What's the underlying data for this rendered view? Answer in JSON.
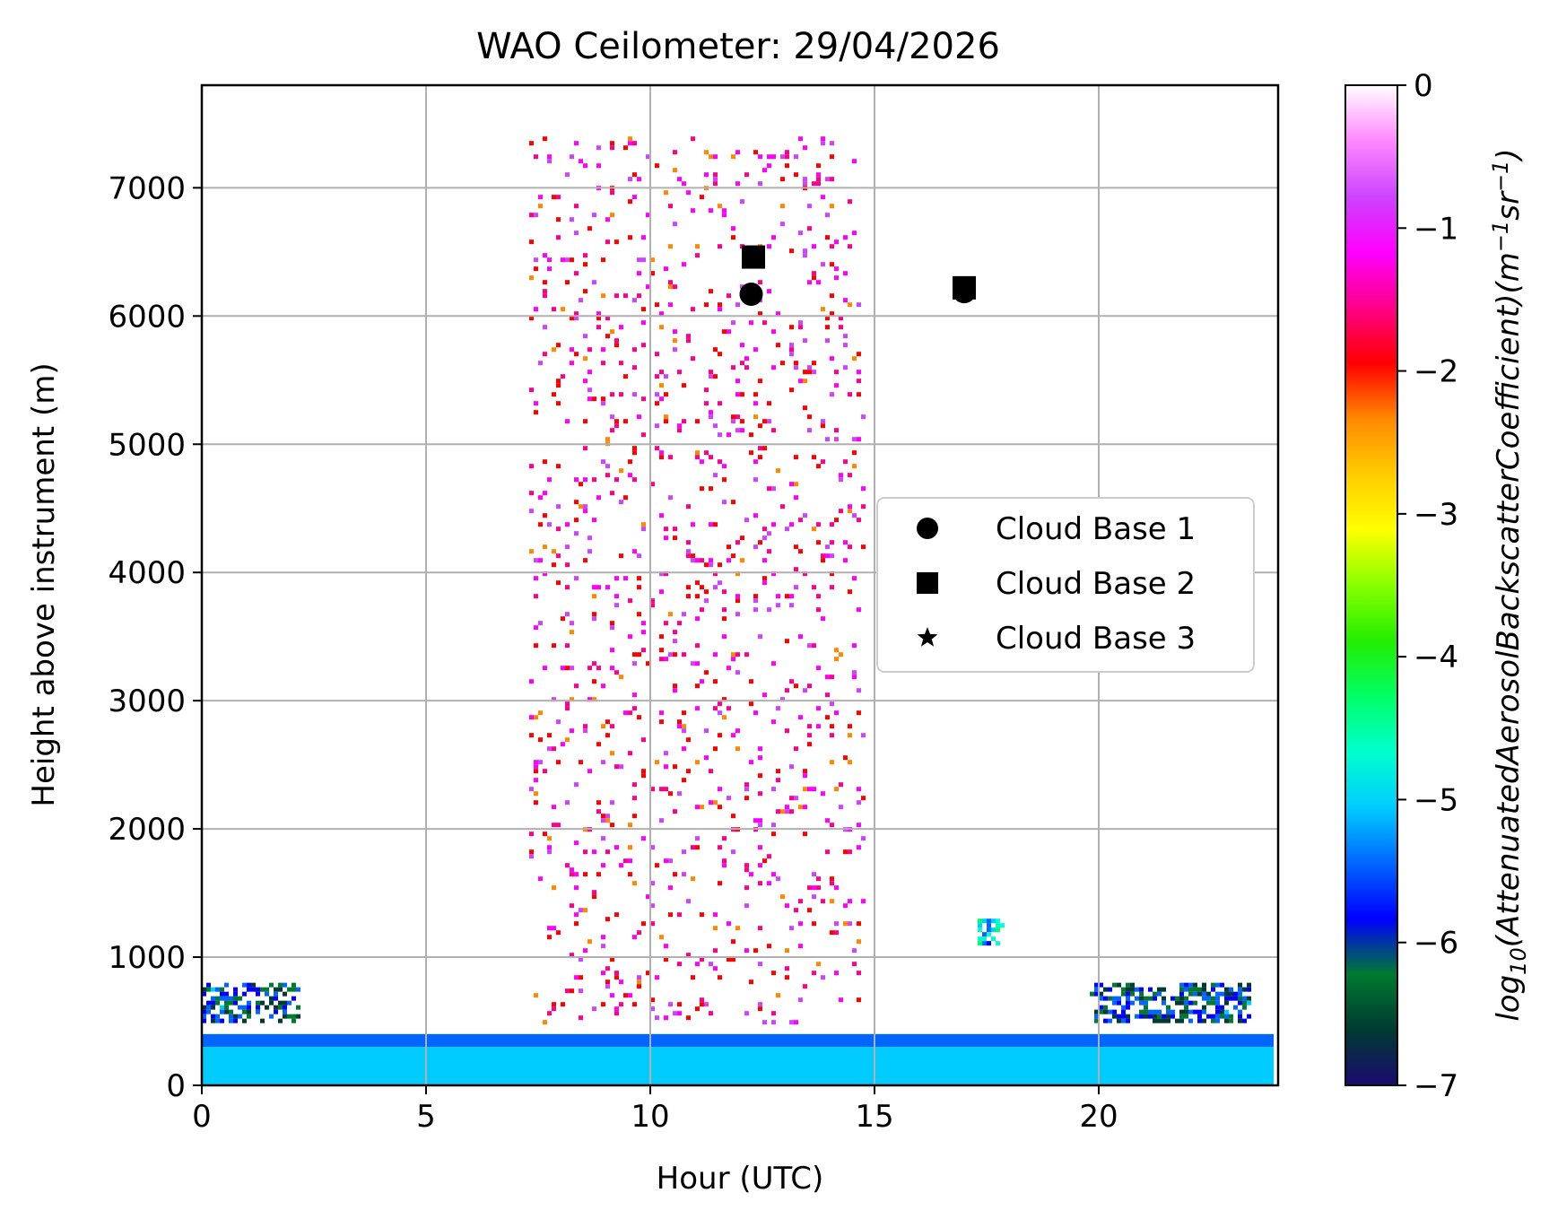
{
  "chart_data": {
    "type": "heatmap",
    "title": "WAO Ceilometer: 29/04/2026",
    "xlabel": "Hour (UTC)",
    "ylabel": "Height above instrument (m)",
    "colorbar_label_base": "log",
    "colorbar_label_sub": "10",
    "colorbar_label_main": "(AttenuatedAerosolBackscatterCoefficient)(m",
    "colorbar_label_exp1": "−1",
    "colorbar_label_mid": "sr",
    "colorbar_label_exp2": "−1",
    "colorbar_label_end": ")",
    "xlim": [
      0,
      24
    ],
    "ylim": [
      0,
      7800
    ],
    "xticks": [
      0,
      5,
      10,
      15,
      20
    ],
    "xtick_labels": [
      "0",
      "5",
      "10",
      "15",
      "20"
    ],
    "yticks": [
      0,
      1000,
      2000,
      3000,
      4000,
      5000,
      6000,
      7000
    ],
    "ytick_labels": [
      "0",
      "1000",
      "2000",
      "3000",
      "4000",
      "5000",
      "6000",
      "7000"
    ],
    "clim": [
      -7,
      0
    ],
    "cticks": [
      0,
      -1,
      -2,
      -3,
      -4,
      -5,
      -6,
      -7
    ],
    "ctick_labels": [
      "0",
      "−1",
      "−2",
      "−3",
      "−4",
      "−5",
      "−6",
      "−7"
    ],
    "colormap": [
      "#1a0a70",
      "#003a30",
      "#007a30",
      "#0000ff",
      "#0066ff",
      "#00ccff",
      "#00ffcc",
      "#00ff66",
      "#22ee00",
      "#88ff00",
      "#ffff00",
      "#ffcc00",
      "#ff8800",
      "#ff0000",
      "#ff0088",
      "#ff00ff",
      "#cc44ff",
      "#ff88ff",
      "#ffffff"
    ],
    "grid": true,
    "legend_position": "center-right",
    "legend": [
      "Cloud Base 1",
      "Cloud Base 2",
      "Cloud Base 3"
    ],
    "series": [
      {
        "name": "Cloud Base 1",
        "marker": "circle",
        "x": [
          12.25,
          17.0
        ],
        "y": [
          6170,
          6190
        ]
      },
      {
        "name": "Cloud Base 2",
        "marker": "square",
        "x": [
          12.3,
          17.0
        ],
        "y": [
          6460,
          6220
        ]
      },
      {
        "name": "Cloud Base 3",
        "marker": "star",
        "x": [],
        "y": []
      }
    ],
    "regions": [
      {
        "x": [
          0,
          23.9
        ],
        "y": [
          0,
          300
        ],
        "value": -5.0
      },
      {
        "x": [
          0,
          23.9
        ],
        "y": [
          300,
          400
        ],
        "value": -5.5
      },
      {
        "x": [
          0,
          2.2
        ],
        "y": [
          500,
          800
        ],
        "value": -6.0
      },
      {
        "x": [
          19.8,
          23.4
        ],
        "y": [
          500,
          800
        ],
        "value": -6.0
      },
      {
        "x": [
          17.3,
          17.9
        ],
        "y": [
          1100,
          1300
        ],
        "value": -5.0
      },
      {
        "x": [
          7.3,
          14.8
        ],
        "y": [
          500,
          7400
        ],
        "value": -1.5
      }
    ]
  }
}
